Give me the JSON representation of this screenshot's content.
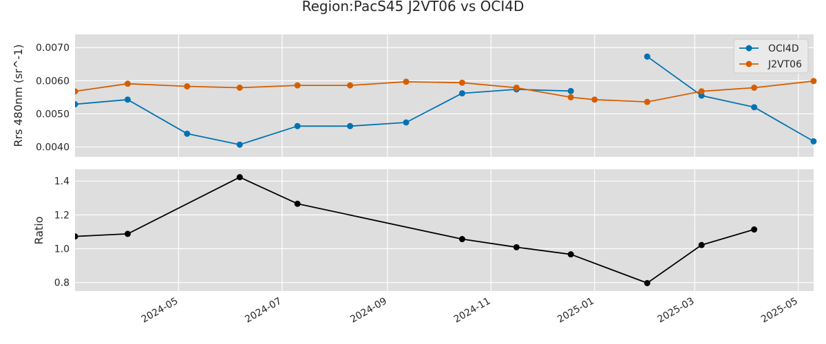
{
  "figure": {
    "title": "Region:PacS45 J2VT06 vs OCI4D"
  },
  "colors": {
    "panel_bg": "#dedede",
    "grid": "#ffffff",
    "oci4d": "#0072b2",
    "j2vt06": "#d55e00",
    "ratio": "#000000",
    "text": "#262626",
    "legend_bg": "#eaeaea",
    "legend_border": "#cccccc"
  },
  "chart_data": [
    {
      "type": "line",
      "title": "Region:PacS45 J2VT06 vs OCI4D",
      "xlabel": "",
      "ylabel": "Rrs 480nm (sr^-1)",
      "xlim": [
        "2024-03-01",
        "2025-05-10"
      ],
      "ylim": [
        0.0037,
        0.0074
      ],
      "yticks": [
        0.004,
        0.005,
        0.006,
        0.007
      ],
      "ytick_labels": [
        "0.0040",
        "0.0050",
        "0.0060",
        "0.0070"
      ],
      "grid": true,
      "legend": "top-right",
      "series": [
        {
          "name": "OCI4D",
          "color": "#0072b2",
          "segments": [
            [
              [
                "2024-03-01",
                0.00529
              ],
              [
                "2024-04-01",
                0.00543
              ],
              [
                "2024-05-06",
                0.0044
              ],
              [
                "2024-06-06",
                0.00407
              ],
              [
                "2024-07-10",
                0.00463
              ],
              [
                "2024-08-10",
                0.00463
              ],
              [
                "2024-09-12",
                0.00474
              ],
              [
                "2024-10-15",
                0.00562
              ],
              [
                "2024-11-16",
                0.00574
              ],
              [
                "2024-12-18",
                0.00569
              ]
            ],
            [
              [
                "2025-02-01",
                0.00673
              ],
              [
                "2025-03-05",
                0.00555
              ],
              [
                "2025-04-05",
                0.0052
              ],
              [
                "2025-05-10",
                0.00417
              ]
            ]
          ]
        },
        {
          "name": "J2VT06",
          "color": "#d55e00",
          "segments": [
            [
              [
                "2024-03-01",
                0.00568
              ],
              [
                "2024-04-01",
                0.00591
              ],
              [
                "2024-05-06",
                0.00583
              ],
              [
                "2024-06-06",
                0.00579
              ],
              [
                "2024-07-10",
                0.00586
              ],
              [
                "2024-08-10",
                0.00586
              ],
              [
                "2024-09-12",
                0.00597
              ],
              [
                "2024-10-15",
                0.00594
              ],
              [
                "2024-11-16",
                0.00579
              ],
              [
                "2024-12-18",
                0.0055
              ],
              [
                "2025-01-01",
                0.00543
              ],
              [
                "2025-02-01",
                0.00536
              ],
              [
                "2025-03-05",
                0.00568
              ],
              [
                "2025-04-05",
                0.00579
              ],
              [
                "2025-05-10",
                0.00599
              ]
            ]
          ]
        }
      ]
    },
    {
      "type": "line",
      "xlabel": "",
      "ylabel": "Ratio",
      "xlim": [
        "2024-03-01",
        "2025-05-10"
      ],
      "ylim": [
        0.75,
        1.47
      ],
      "yticks": [
        0.8,
        1.0,
        1.2,
        1.4
      ],
      "ytick_labels": [
        "0.8",
        "1.0",
        "1.2",
        "1.4"
      ],
      "xticks": [
        "2024-05-01",
        "2024-07-01",
        "2024-09-01",
        "2024-11-01",
        "2025-01-01",
        "2025-03-01",
        "2025-05-01"
      ],
      "xtick_labels": [
        "2024-05",
        "2024-07",
        "2024-09",
        "2024-11",
        "2025-01",
        "2025-03",
        "2025-05"
      ],
      "grid": true,
      "series": [
        {
          "color": "#000000",
          "segments": [
            [
              [
                "2024-03-01",
                1.073
              ],
              [
                "2024-04-01",
                1.088
              ],
              [
                "2024-06-06",
                1.423
              ],
              [
                "2024-07-10",
                1.266
              ],
              [
                "2024-10-15",
                1.057
              ],
              [
                "2024-11-16",
                1.009
              ],
              [
                "2024-12-18",
                0.967
              ],
              [
                "2025-02-01",
                0.797
              ],
              [
                "2025-03-05",
                1.022
              ],
              [
                "2025-04-05",
                1.114
              ]
            ]
          ]
        }
      ]
    }
  ]
}
